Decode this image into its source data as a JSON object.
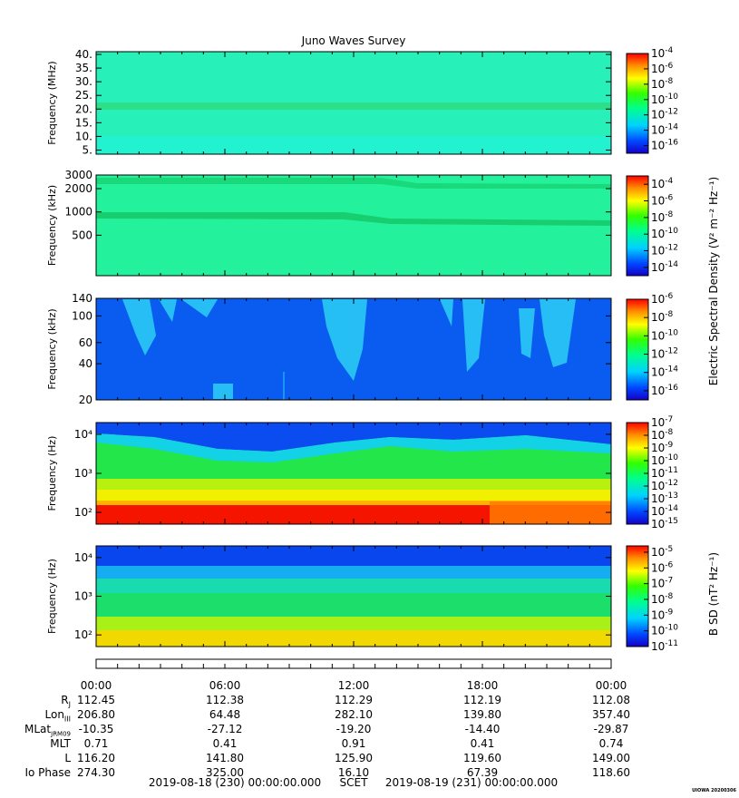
{
  "title": "Juno Waves Survey",
  "footer": {
    "start": "2019-08-18 (230) 00:00:00.000",
    "scet": "SCET",
    "end": "2019-08-19 (231) 00:00:00.000",
    "credit": "UIOWA 20200306"
  },
  "colorbar_labels": {
    "electric": "Electric Spectral Density (V² m⁻² Hz⁻¹)",
    "magnetic": "B SD (nT² Hz⁻¹)"
  },
  "ephemeris": {
    "rows": [
      {
        "label": "R_J",
        "values": [
          "112.45",
          "112.38",
          "112.29",
          "112.19",
          "112.08"
        ]
      },
      {
        "label": "Lon_III",
        "values": [
          "206.80",
          "64.48",
          "282.10",
          "139.80",
          "357.40"
        ]
      },
      {
        "label": "MLat_JRM09",
        "values": [
          "-10.35",
          "-27.12",
          "-19.20",
          "-14.40",
          "-29.87"
        ]
      },
      {
        "label": "MLT",
        "values": [
          "0.71",
          "0.41",
          "0.91",
          "0.41",
          "0.74"
        ]
      },
      {
        "label": "L",
        "values": [
          "116.20",
          "141.80",
          "125.90",
          "119.60",
          "149.00"
        ]
      },
      {
        "label": "Io Phase",
        "values": [
          "274.30",
          "325.00",
          "16.10",
          "67.39",
          "118.60"
        ]
      }
    ]
  },
  "chart_data": [
    {
      "type": "heatmap",
      "title": "Juno Waves Survey",
      "xlabel": "",
      "ylabel": "Frequency (MHz)",
      "x_ticks": [
        "00:00",
        "06:00",
        "12:00",
        "18:00",
        "00:00"
      ],
      "y_ticks": [
        "5.",
        "10.",
        "15.",
        "20.",
        "25.",
        "30.",
        "35.",
        "40."
      ],
      "ylim": [
        3.5,
        41
      ],
      "y_scale": "linear",
      "colorbar": {
        "scale": "log",
        "ticks": [
          "-16",
          "-14",
          "-12",
          "-10",
          "-8",
          "-6",
          "-4"
        ],
        "range_exp": [
          -17,
          -4
        ],
        "label": "Electric Spectral Density (V² m⁻² Hz⁻¹)"
      }
    },
    {
      "type": "heatmap",
      "ylabel": "Frequency (kHz)",
      "x_ticks": [
        "00:00",
        "06:00",
        "12:00",
        "18:00",
        "00:00"
      ],
      "y_ticks": [
        "500",
        "1000",
        "2000",
        "3000"
      ],
      "ylim": [
        150,
        3000
      ],
      "y_scale": "log",
      "colorbar": {
        "scale": "log",
        "ticks": [
          "-14",
          "-12",
          "-10",
          "-8",
          "-6",
          "-4"
        ],
        "range_exp": [
          -15,
          -3
        ],
        "label": "Electric Spectral Density (V² m⁻² Hz⁻¹)"
      }
    },
    {
      "type": "heatmap",
      "ylabel": "Frequency (kHz)",
      "x_ticks": [
        "00:00",
        "06:00",
        "12:00",
        "18:00",
        "00:00"
      ],
      "y_ticks": [
        "20",
        "40",
        "60",
        "100",
        "140"
      ],
      "ylim": [
        20,
        140
      ],
      "y_scale": "log",
      "colorbar": {
        "scale": "log",
        "ticks": [
          "-16",
          "-14",
          "-12",
          "-10",
          "-8",
          "-6"
        ],
        "range_exp": [
          -17,
          -6
        ],
        "label": "Electric Spectral Density (V² m⁻² Hz⁻¹)"
      }
    },
    {
      "type": "heatmap",
      "ylabel": "Frequency (Hz)",
      "x_ticks": [
        "00:00",
        "06:00",
        "12:00",
        "18:00",
        "00:00"
      ],
      "y_ticks": [
        "10²",
        "10³",
        "10⁴"
      ],
      "ylim": [
        50,
        20000
      ],
      "y_scale": "log",
      "colorbar": {
        "scale": "log",
        "ticks": [
          "-15",
          "-14",
          "-13",
          "-12",
          "-11",
          "-10",
          "-9",
          "-8",
          "-7"
        ],
        "range_exp": [
          -15,
          -7
        ],
        "label": "Electric Spectral Density (V² m⁻² Hz⁻¹)"
      }
    },
    {
      "type": "heatmap",
      "ylabel": "Frequency (Hz)",
      "x_ticks": [
        "00:00",
        "06:00",
        "12:00",
        "18:00",
        "00:00"
      ],
      "y_ticks": [
        "10²",
        "10³",
        "10⁴"
      ],
      "ylim": [
        50,
        20000
      ],
      "y_scale": "log",
      "colorbar": {
        "scale": "log",
        "ticks": [
          "-11",
          "-10",
          "-9",
          "-8",
          "-7",
          "-6",
          "-5"
        ],
        "range_exp": [
          -11,
          -4.6
        ],
        "label": "B SD (nT² Hz⁻¹)"
      }
    }
  ]
}
